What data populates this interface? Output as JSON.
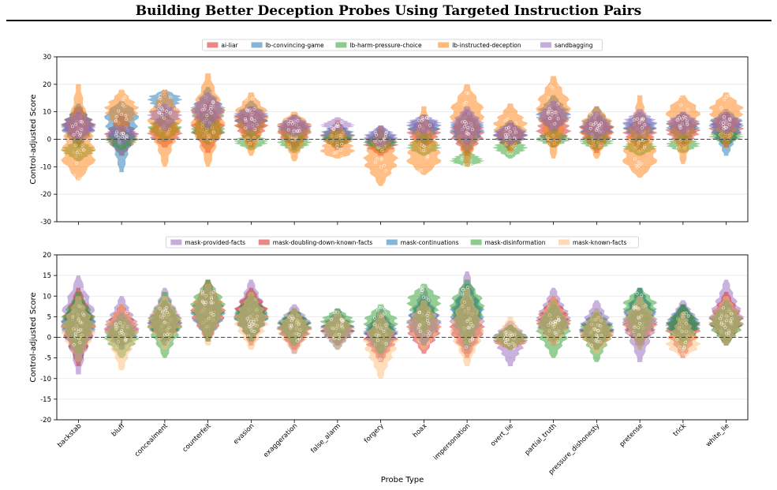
{
  "page": {
    "title": "Building Better Deception Probes Using Targeted Instruction Pairs"
  },
  "chart_data": {
    "type": "violin",
    "xlabel": "Probe Type",
    "categories": [
      "backstab",
      "bluff",
      "concealment",
      "counterfeit",
      "evasion",
      "exaggeration",
      "false_alarm",
      "forgery",
      "hoax",
      "impersonation",
      "overt_lie",
      "partial_truth",
      "pressure_dishonesty",
      "pretense",
      "trick",
      "white_lie"
    ],
    "panels": [
      {
        "ylabel": "Control-adjusted Score",
        "ylim": [
          -30,
          30
        ],
        "yticks": [
          -30,
          -20,
          -10,
          0,
          10,
          20,
          30
        ],
        "reference_line": 0,
        "legend_position": "top-center",
        "series": [
          {
            "name": "ai-liar",
            "color": "#d62728",
            "medians": [
              5,
              1,
              2,
              4,
              6,
              3,
              1,
              -2,
              3,
              2,
              1,
              3,
              3,
              3,
              3,
              4
            ],
            "mins": [
              -2,
              -6,
              -3,
              -5,
              -3,
              -4,
              -4,
              -6,
              -4,
              -6,
              -4,
              -3,
              -5,
              -4,
              -3,
              -3
            ],
            "maxs": [
              12,
              9,
              10,
              14,
              12,
              8,
              6,
              4,
              8,
              10,
              6,
              12,
              9,
              8,
              9,
              10
            ]
          },
          {
            "name": "lb-convincing-game",
            "color": "#1f77b4",
            "medians": [
              4,
              9,
              15,
              10,
              8,
              4,
              2,
              0,
              5,
              4,
              2,
              9,
              4,
              5,
              5,
              6
            ],
            "mins": [
              -3,
              -12,
              8,
              2,
              -1,
              -3,
              -3,
              -5,
              -2,
              -5,
              -4,
              2,
              -3,
              -2,
              -2,
              -6
            ],
            "maxs": [
              13,
              14,
              18,
              19,
              14,
              9,
              6,
              5,
              9,
              11,
              7,
              16,
              12,
              10,
              10,
              11
            ]
          },
          {
            "name": "lb-harm-pressure-choice",
            "color": "#2ca02c",
            "medians": [
              -4,
              0,
              4,
              3,
              -1,
              -1,
              0,
              -1,
              -3,
              -8,
              -3,
              0,
              -1,
              -3,
              -2,
              1
            ],
            "mins": [
              -8,
              -4,
              -1,
              -2,
              -4,
              -5,
              -3,
              -5,
              -6,
              -10,
              -7,
              -3,
              -4,
              -6,
              -5,
              -2
            ],
            "maxs": [
              0,
              4,
              10,
              10,
              3,
              3,
              3,
              3,
              2,
              -4,
              1,
              4,
              3,
              1,
              2,
              4
            ]
          },
          {
            "name": "lb-instructed-deception",
            "color": "#ff7f0e",
            "medians": [
              -7,
              11,
              8,
              8,
              9,
              5,
              -5,
              -8,
              -8,
              10,
              5,
              12,
              5,
              -8,
              10,
              11
            ],
            "mins": [
              -15,
              2,
              -10,
              -10,
              -6,
              -8,
              -7,
              -17,
              -13,
              -10,
              -5,
              -7,
              -7,
              -14,
              -9,
              -3
            ],
            "maxs": [
              20,
              18,
              18,
              24,
              17,
              10,
              7,
              5,
              12,
              20,
              13,
              23,
              12,
              16,
              16,
              17
            ]
          },
          {
            "name": "sandbagging",
            "color": "#9467bd",
            "medians": [
              4,
              2,
              9,
              11,
              9,
              5,
              5,
              1,
              6,
              5,
              2,
              8,
              4,
              6,
              6,
              6
            ],
            "mins": [
              0,
              -2,
              3,
              4,
              3,
              1,
              3,
              -3,
              2,
              -2,
              -2,
              3,
              0,
              2,
              2,
              2
            ],
            "maxs": [
              10,
              5,
              13,
              17,
              12,
              9,
              8,
              5,
              9,
              12,
              6,
              14,
              10,
              11,
              10,
              10
            ]
          }
        ]
      },
      {
        "ylabel": "Control-adjusted Score",
        "ylim": [
          -20,
          20
        ],
        "yticks": [
          -20,
          -15,
          -10,
          -5,
          0,
          5,
          10,
          15,
          20
        ],
        "reference_line": 0,
        "legend_position": "top-center",
        "series": [
          {
            "name": "mask-provided-facts",
            "color": "#9467bd",
            "medians": [
              5,
              2,
              3,
              6,
              5,
              3,
              2,
              1,
              3,
              3,
              0,
              4,
              2,
              4,
              3,
              4
            ],
            "mins": [
              -9,
              -3,
              -2,
              -1,
              -1,
              -4,
              -2,
              -5,
              -2,
              -4,
              -7,
              0,
              -3,
              -6,
              -1,
              -1
            ],
            "maxs": [
              15,
              10,
              12,
              13,
              14,
              8,
              7,
              7,
              12,
              16,
              4,
              12,
              9,
              12,
              9,
              14
            ]
          },
          {
            "name": "mask-doubling-down-known-facts",
            "color": "#d62728",
            "medians": [
              3,
              2,
              3,
              6,
              6,
              2,
              2,
              0,
              2,
              2,
              -1,
              4,
              1,
              3,
              2,
              4
            ],
            "mins": [
              -7,
              -2,
              -1,
              -1,
              -2,
              -3,
              -2,
              -6,
              -4,
              -5,
              -3,
              -2,
              -3,
              -2,
              -5,
              -2
            ],
            "maxs": [
              12,
              8,
              9,
              14,
              12,
              7,
              5,
              5,
              9,
              10,
              3,
              10,
              6,
              8,
              8,
              11
            ]
          },
          {
            "name": "mask-continuations",
            "color": "#1f77b4",
            "medians": [
              3,
              1,
              4,
              6,
              5,
              3,
              2,
              1,
              4,
              6,
              0,
              3,
              2,
              5,
              3,
              4
            ],
            "mins": [
              -6,
              -3,
              -2,
              -1,
              -1,
              -2,
              -3,
              -4,
              -2,
              -3,
              -3,
              -1,
              -3,
              -3,
              -1,
              -2
            ],
            "maxs": [
              10,
              6,
              9,
              13,
              10,
              7,
              6,
              6,
              10,
              13,
              3,
              8,
              7,
              12,
              8,
              9
            ]
          },
          {
            "name": "mask-disinformation",
            "color": "#2ca02c",
            "medians": [
              4,
              0,
              3,
              8,
              5,
              3,
              4,
              4,
              9,
              8,
              0,
              2,
              2,
              8,
              3,
              3
            ],
            "mins": [
              -4,
              -5,
              -5,
              -1,
              -1,
              -2,
              -1,
              -4,
              1,
              -2,
              -3,
              -5,
              -6,
              -1,
              -3,
              -2
            ],
            "maxs": [
              11,
              5,
              11,
              14,
              11,
              7,
              7,
              8,
              13,
              14,
              3,
              9,
              6,
              12,
              8,
              9
            ]
          },
          {
            "name": "mask-known-facts",
            "color": "#ffbb78",
            "medians": [
              2,
              2,
              4,
              7,
              4,
              2,
              2,
              -1,
              3,
              2,
              -1,
              3,
              1,
              4,
              -2,
              4
            ],
            "mins": [
              -6,
              -8,
              -3,
              -2,
              -3,
              -4,
              -3,
              -10,
              -3,
              -7,
              -3,
              -2,
              -4,
              -3,
              -5,
              -2
            ],
            "maxs": [
              10,
              8,
              10,
              13,
              11,
              7,
              6,
              6,
              9,
              12,
              5,
              10,
              7,
              10,
              6,
              10
            ]
          }
        ]
      }
    ]
  }
}
